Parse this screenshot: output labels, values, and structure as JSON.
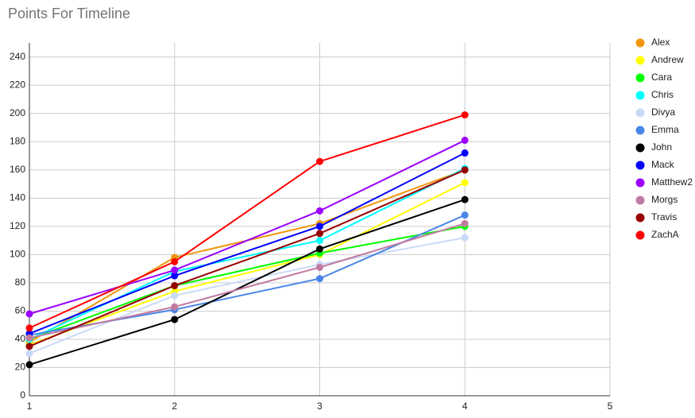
{
  "chart_data": {
    "type": "line",
    "title": "Points For Timeline",
    "x": [
      1,
      2,
      3,
      4
    ],
    "xlim": [
      1,
      5
    ],
    "xticks": [
      1,
      2,
      3,
      4,
      5
    ],
    "ylim": [
      0,
      250
    ],
    "yticks": [
      0,
      20,
      40,
      60,
      80,
      100,
      120,
      140,
      160,
      180,
      200,
      220,
      240
    ],
    "grid": true,
    "legend": "right",
    "series": [
      {
        "name": "Alex",
        "color": "#f0960e",
        "values": [
          38,
          98,
          122,
          160
        ]
      },
      {
        "name": "Andrew",
        "color": "#ffff00",
        "values": [
          36,
          74,
          100,
          151
        ]
      },
      {
        "name": "Cara",
        "color": "#00ff00",
        "values": [
          40,
          78,
          101,
          120
        ]
      },
      {
        "name": "Chris",
        "color": "#00ffff",
        "values": [
          40,
          88,
          110,
          161
        ]
      },
      {
        "name": "Divya",
        "color": "#c9daf8",
        "values": [
          30,
          71,
          93,
          112
        ]
      },
      {
        "name": "Emma",
        "color": "#4a86e8",
        "values": [
          43,
          61,
          83,
          128
        ]
      },
      {
        "name": "John",
        "color": "#000000",
        "values": [
          22,
          54,
          104,
          139
        ]
      },
      {
        "name": "Mack",
        "color": "#0000ff",
        "values": [
          44,
          85,
          120,
          172
        ]
      },
      {
        "name": "Matthew2",
        "color": "#9900ff",
        "values": [
          58,
          89,
          131,
          181
        ]
      },
      {
        "name": "Morgs",
        "color": "#c27ba0",
        "values": [
          41,
          63,
          91,
          122
        ]
      },
      {
        "name": "Travis",
        "color": "#980000",
        "values": [
          35,
          78,
          115,
          160
        ]
      },
      {
        "name": "ZachA",
        "color": "#ff0000",
        "values": [
          48,
          95,
          166,
          199
        ]
      }
    ]
  }
}
